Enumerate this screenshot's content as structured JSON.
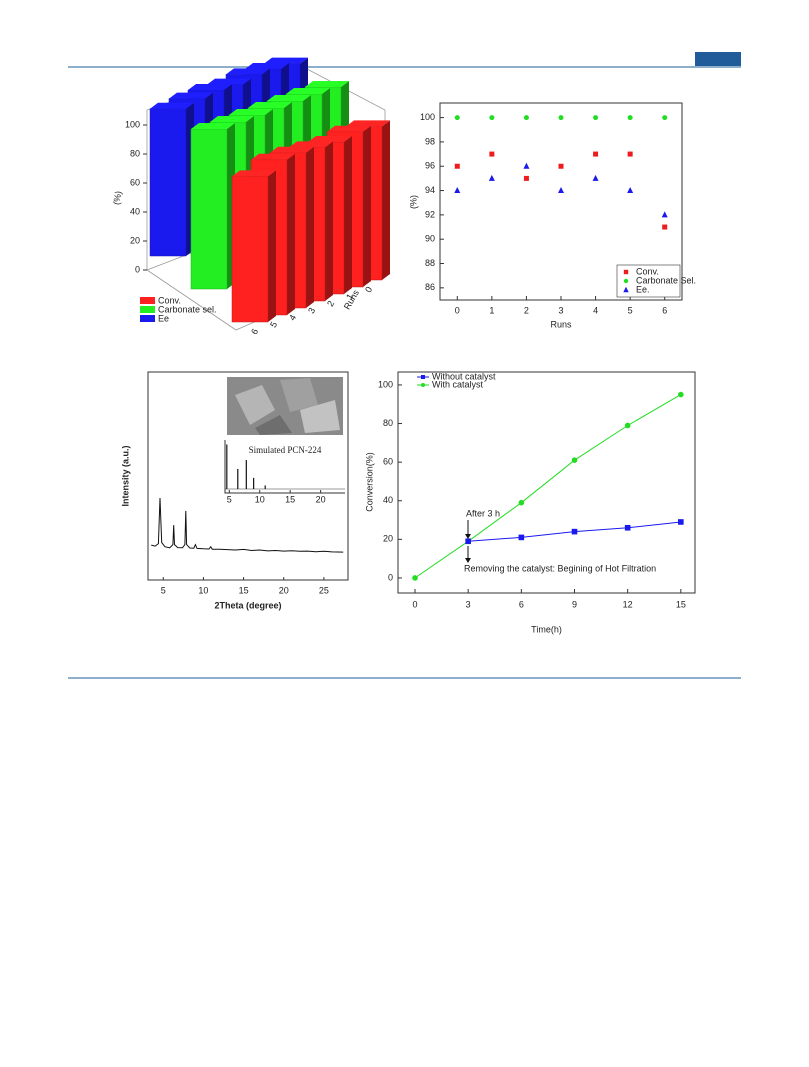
{
  "chart_data": [
    {
      "type": "bar3d",
      "ylabel": "(%)",
      "xlabel": "Runs",
      "categories": [
        "0",
        "1",
        "2",
        "3",
        "4",
        "5",
        "6"
      ],
      "ylim": [
        0,
        100
      ],
      "yticks": [
        0,
        20,
        40,
        60,
        80,
        100
      ],
      "legend": "bottom-left",
      "series": [
        {
          "name": "Conv.",
          "color": "#ff2020",
          "values": [
            96,
            97,
            95,
            96,
            97,
            97,
            91
          ]
        },
        {
          "name": "Carbonate sel.",
          "color": "#22ee22",
          "values": [
            100,
            100,
            100,
            100,
            100,
            100,
            100
          ]
        },
        {
          "name": "Ee",
          "color": "#1a1aee",
          "values": [
            94,
            95,
            96,
            94,
            95,
            94,
            92
          ]
        }
      ]
    },
    {
      "type": "scatter",
      "ylabel": "(%)",
      "xlabel": "Runs",
      "x": [
        0,
        1,
        2,
        3,
        4,
        5,
        6
      ],
      "xlim": [
        -0.5,
        6.5
      ],
      "xticks": [
        0,
        1,
        2,
        3,
        4,
        5,
        6
      ],
      "ylim": [
        85,
        101.2
      ],
      "yticks": [
        86,
        88,
        90,
        92,
        94,
        96,
        98,
        100
      ],
      "legend": "bottom-right",
      "series": [
        {
          "name": "Conv.",
          "color": "#ee1c1c",
          "marker": "square",
          "values": [
            96,
            97,
            95,
            96,
            97,
            97,
            91
          ]
        },
        {
          "name": "Carbonate Sel.",
          "color": "#22dd22",
          "marker": "circle",
          "values": [
            100,
            100,
            100,
            100,
            100,
            100,
            100
          ]
        },
        {
          "name": "Ee.",
          "color": "#1a1aee",
          "marker": "triangle",
          "values": [
            94,
            95,
            96,
            94,
            95,
            94,
            92
          ]
        }
      ]
    },
    {
      "type": "line",
      "xlabel": "2Theta (degree)",
      "ylabel": "Intensity (a.u.)",
      "xlim": [
        3.1,
        28
      ],
      "xticks": [
        5,
        10,
        15,
        20,
        25
      ],
      "ylim": [
        0,
        100
      ],
      "color": "#111111",
      "x": [
        3.5,
        4.0,
        4.4,
        4.6,
        4.8,
        5.2,
        5.8,
        6.2,
        6.3,
        6.4,
        6.8,
        7.4,
        7.7,
        7.8,
        7.9,
        8.3,
        8.8,
        9.0,
        9.2,
        10,
        10.7,
        10.9,
        11.1,
        12,
        13,
        14,
        15,
        16,
        17,
        18,
        19,
        20,
        21,
        22,
        23,
        24,
        25,
        26,
        27.4
      ],
      "values": [
        16.8,
        16.3,
        17.5,
        39.4,
        18,
        16,
        15.5,
        17,
        26.4,
        17,
        15.6,
        15.5,
        17,
        33.2,
        17,
        15.4,
        15.3,
        17,
        15.2,
        15,
        14.9,
        16,
        14.8,
        14.8,
        14.6,
        14.4,
        14.7,
        14.2,
        14.4,
        14.0,
        14.2,
        13.9,
        14.1,
        13.8,
        13.9,
        13.6,
        13.8,
        13.5,
        13.4
      ],
      "inset": {
        "type": "stem",
        "title": "Simulated PCN-224",
        "xlim": [
          4.3,
          24
        ],
        "xticks": [
          5,
          10,
          15,
          20
        ],
        "ylim": [
          0,
          110
        ],
        "x": [
          4.6,
          6.4,
          7.8,
          9.0,
          10.9
        ],
        "values": [
          100,
          45,
          65,
          25,
          8
        ]
      }
    },
    {
      "type": "line",
      "xlabel": "Time(h)",
      "ylabel": "Conversion(%)",
      "x": [
        0,
        3,
        6,
        9,
        12,
        15
      ],
      "xlim": [
        -0.96,
        15.8
      ],
      "xticks": [
        0,
        3,
        6,
        9,
        12,
        15
      ],
      "ylim": [
        -7.8,
        106.7
      ],
      "yticks": [
        0,
        20,
        40,
        60,
        80,
        100
      ],
      "legend": "top-left",
      "annotations": [
        "After 3 h",
        "Removing the catalyst: Begining of Hot Filtration"
      ],
      "series": [
        {
          "name": "Without catalyst",
          "color": "#1a1aee",
          "marker": "square",
          "values": [
            null,
            19,
            21,
            24,
            26,
            29
          ]
        },
        {
          "name": "With catalyst",
          "color": "#22dd22",
          "marker": "circle",
          "values": [
            0,
            19,
            39,
            61,
            79,
            95
          ]
        }
      ]
    }
  ]
}
